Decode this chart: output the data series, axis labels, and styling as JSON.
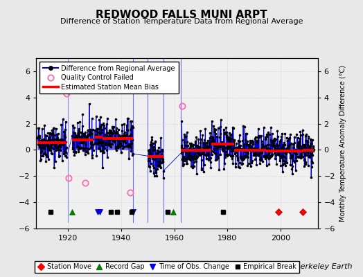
{
  "title": "REDWOOD FALLS MUNI ARPT",
  "subtitle": "Difference of Station Temperature Data from Regional Average",
  "ylabel_right": "Monthly Temperature Anomaly Difference (°C)",
  "xlabel_credit": "Berkeley Earth",
  "xlim": [
    1908,
    2014
  ],
  "ylim": [
    -6,
    7
  ],
  "yticks": [
    -6,
    -4,
    -2,
    0,
    2,
    4,
    6
  ],
  "xticks": [
    1920,
    1940,
    1960,
    1980,
    2000
  ],
  "bg_color": "#e8e8e8",
  "plot_bg_color": "#f0f0f0",
  "grid_color": "#cccccc",
  "seed": 42,
  "segments": [
    {
      "start": 1908.5,
      "end": 1919.5,
      "bias": 0.55
    },
    {
      "start": 1921.5,
      "end": 1929.5,
      "bias": 0.75
    },
    {
      "start": 1930.0,
      "end": 1933.0,
      "bias": 1.0
    },
    {
      "start": 1933.0,
      "end": 1944.5,
      "bias": 0.85
    },
    {
      "start": 1950.0,
      "end": 1956.0,
      "bias": -0.5
    },
    {
      "start": 1962.5,
      "end": 1974.0,
      "bias": -0.05
    },
    {
      "start": 1974.0,
      "end": 1982.5,
      "bias": 0.45
    },
    {
      "start": 1982.5,
      "end": 1994.5,
      "bias": -0.05
    },
    {
      "start": 1994.5,
      "end": 1999.0,
      "bias": -0.1
    },
    {
      "start": 1999.0,
      "end": 2008.3,
      "bias": -0.1
    },
    {
      "start": 2008.3,
      "end": 2012.5,
      "bias": -0.05
    }
  ],
  "qc_failed": [
    {
      "year": 1919.3,
      "value": 4.3
    },
    {
      "year": 1920.1,
      "value": -2.15
    },
    {
      "year": 1926.5,
      "value": -2.5
    },
    {
      "year": 1943.5,
      "value": -3.25
    },
    {
      "year": 1963.0,
      "value": 3.35
    }
  ],
  "gap_verticals": [
    {
      "x": 1920.0,
      "y_bot": -5.5,
      "y_top": 7.0
    },
    {
      "x": 1944.5,
      "y_bot": -5.5,
      "y_top": 7.0
    },
    {
      "x": 1950.0,
      "y_bot": -5.5,
      "y_top": 7.0
    },
    {
      "x": 1956.0,
      "y_bot": -5.5,
      "y_top": 7.0
    },
    {
      "x": 1962.5,
      "y_bot": -5.5,
      "y_top": 7.0
    }
  ],
  "station_moves": [
    1999.2,
    2008.5
  ],
  "record_gaps": [
    1921.5,
    1959.5
  ],
  "obs_changes": [
    1931.0,
    1931.8,
    1944.5
  ],
  "empirical_breaks": [
    1913.5,
    1936.0,
    1938.5,
    1944.0,
    1957.5,
    1978.5
  ],
  "marker_y": -4.75,
  "gap_periods": [
    {
      "start": 1919.5,
      "end": 1921.5
    },
    {
      "start": 1944.5,
      "end": 1950.0
    },
    {
      "start": 1956.0,
      "end": 1962.5
    }
  ]
}
